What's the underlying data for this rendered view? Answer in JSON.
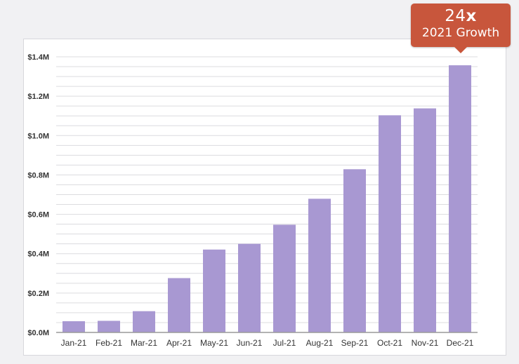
{
  "callout": {
    "multiplier": "24",
    "multiplier_suffix": "x",
    "subtitle": "2021 Growth"
  },
  "colors": {
    "bar": "#a898d2",
    "callout": "#c8563c",
    "grid": "#dcdcdf",
    "axis": "#9a9a9a"
  },
  "chart_data": {
    "type": "bar",
    "title": "",
    "xlabel": "",
    "ylabel": "",
    "categories": [
      "Jan-21",
      "Feb-21",
      "Mar-21",
      "Apr-21",
      "May-21",
      "Jun-21",
      "Jul-21",
      "Aug-21",
      "Sep-21",
      "Oct-21",
      "Nov-21",
      "Dec-21"
    ],
    "values": [
      0.057,
      0.059,
      0.108,
      0.276,
      0.421,
      0.45,
      0.547,
      0.679,
      0.829,
      1.103,
      1.138,
      1.357
    ],
    "ylim": [
      0,
      1.4
    ],
    "yticks": [
      0,
      0.2,
      0.4,
      0.6,
      0.8,
      1.0,
      1.2,
      1.4
    ],
    "ytick_labels": [
      "$0.0M",
      "$0.2M",
      "$0.4M",
      "$0.6M",
      "$0.8M",
      "$1.0M",
      "$1.2M",
      "$1.4M"
    ],
    "units": "$M",
    "grid": true
  }
}
